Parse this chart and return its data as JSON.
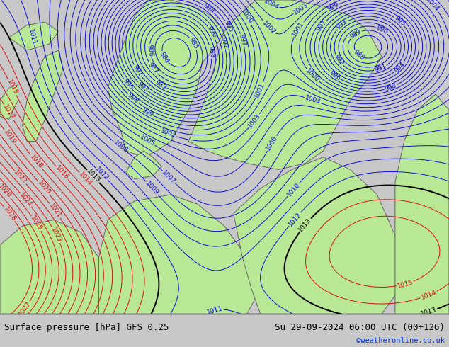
{
  "title_left": "Surface pressure [hPa] GFS 0.25",
  "title_right": "Su 29-09-2024 06:00 UTC (00+126)",
  "credit": "©weatheronline.co.uk",
  "bg_color": "#c8c8c8",
  "sea_color": "#d8d8d8",
  "land_color": "#b8e896",
  "blue_isobar_color": "#0000dd",
  "red_isobar_color": "#dd0000",
  "black_isobar_color": "#000000",
  "bottom_bar_height": 0.095,
  "figsize": [
    6.34,
    4.9
  ],
  "dpi": 100,
  "title_fontsize": 9.0,
  "credit_fontsize": 7.5,
  "credit_color": "#0033cc",
  "isobar_label_fontsize": 6.5,
  "coast_color": "#555555",
  "coast_linewidth": 0.6
}
